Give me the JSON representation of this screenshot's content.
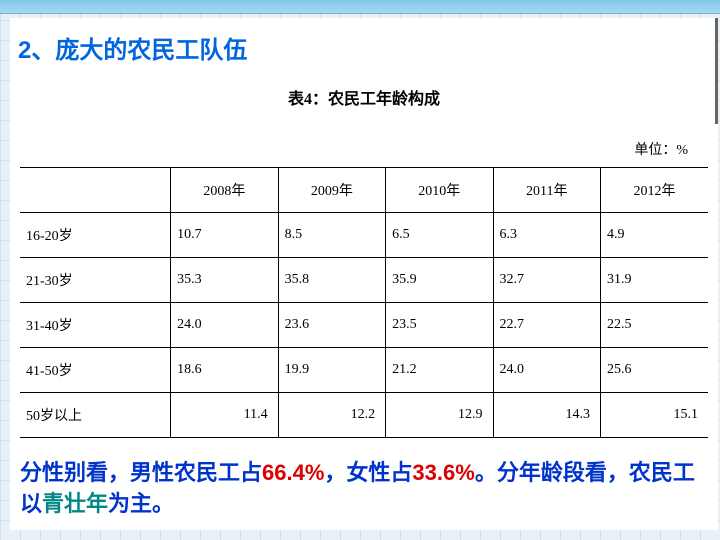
{
  "heading": "2、庞大的农民工队伍",
  "table_title": "表4：农民工年龄构成",
  "unit_label": "单位：%",
  "table": {
    "columns": [
      "",
      "2008年",
      "2009年",
      "2010年",
      "2011年",
      "2012年"
    ],
    "rows": [
      [
        "16-20岁",
        "10.7",
        "8.5",
        "6.5",
        "6.3",
        "4.9"
      ],
      [
        "21-30岁",
        "35.3",
        "35.8",
        "35.9",
        "32.7",
        "31.9"
      ],
      [
        "31-40岁",
        "24.0",
        "23.6",
        "23.5",
        "22.7",
        "22.5"
      ],
      [
        "41-50岁",
        "18.6",
        "19.9",
        "21.2",
        "24.0",
        "25.6"
      ],
      [
        "50岁以上",
        "11.4",
        "12.2",
        "12.9",
        "14.3",
        "15.1"
      ]
    ],
    "col_widths": [
      "150px",
      "107px",
      "107px",
      "107px",
      "107px",
      "107px"
    ]
  },
  "summary": {
    "parts": [
      {
        "text": "分性别看，男性农民工占",
        "cls": ""
      },
      {
        "text": "66.4%",
        "cls": "red"
      },
      {
        "text": "，女性占",
        "cls": ""
      },
      {
        "text": "33.6%",
        "cls": "red"
      },
      {
        "text": "。分年龄段看，农民工以",
        "cls": ""
      },
      {
        "text": "青壮年",
        "cls": "teal"
      },
      {
        "text": "为主。",
        "cls": ""
      }
    ]
  },
  "colors": {
    "heading_blue": "#0066dd",
    "summary_blue": "#0033cc",
    "red": "#dd0000",
    "teal": "#008888",
    "page_bg": "#ffffff",
    "outer_bg": "#e8f0f8",
    "grid_line": "#d0e0f0",
    "banner_top": "#7ec8e8",
    "border_black": "#000000"
  }
}
